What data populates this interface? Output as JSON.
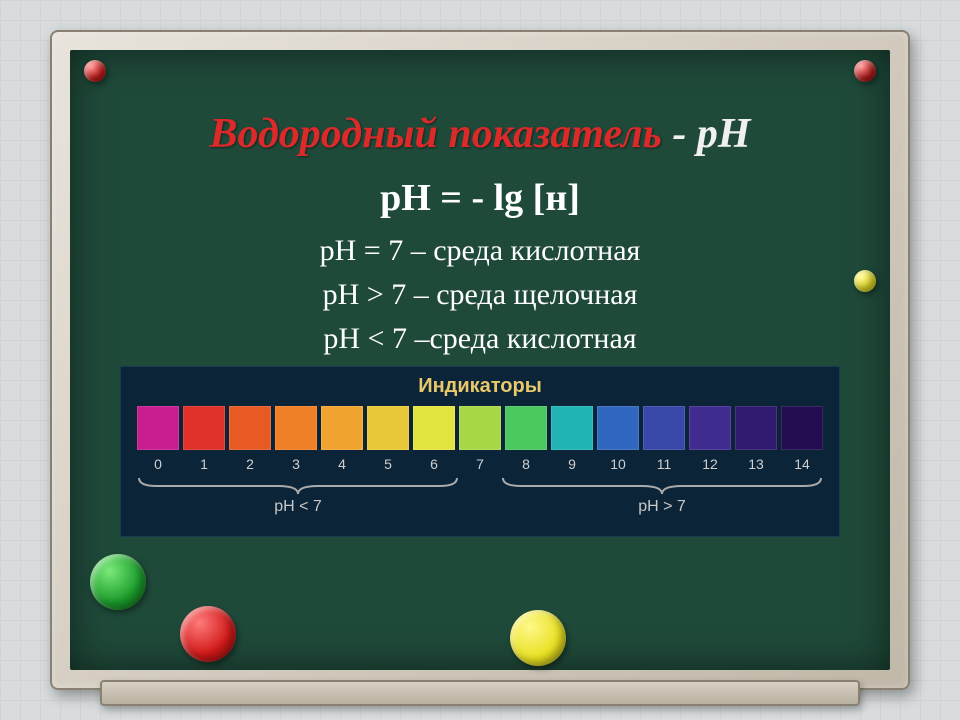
{
  "title": {
    "red": "Водородный показатель",
    "sep": " - ",
    "white": "рН"
  },
  "formula": "рН = - lg [н]",
  "rules": [
    "рН = 7 – среда кислотная",
    "рН > 7 – среда щелочная",
    "рН < 7 –среда кислотная"
  ],
  "indicator": {
    "title": "Индикаторы",
    "colors": [
      "#c61e8f",
      "#e0302a",
      "#e85a24",
      "#f08028",
      "#f2a430",
      "#e8c838",
      "#e4e440",
      "#a8d848",
      "#4cc860",
      "#20b4b4",
      "#3068c0",
      "#3848a8",
      "#402c90",
      "#301a70",
      "#240c50"
    ],
    "numbers": [
      "0",
      "1",
      "2",
      "3",
      "4",
      "5",
      "6",
      "7",
      "8",
      "9",
      "10",
      "11",
      "12",
      "13",
      "14"
    ],
    "left_label": "pH < 7",
    "right_label": "pH > 7"
  },
  "magnets": {
    "topLeft": {
      "color": "#c81818"
    },
    "topRight": {
      "color": "#b81818"
    },
    "midRight": {
      "color": "#e8e020"
    },
    "bigGreen": {
      "color": "#1a9a2a"
    },
    "bigRed": {
      "color": "#d01818"
    },
    "bigYellow": {
      "color": "#e8e020"
    }
  }
}
